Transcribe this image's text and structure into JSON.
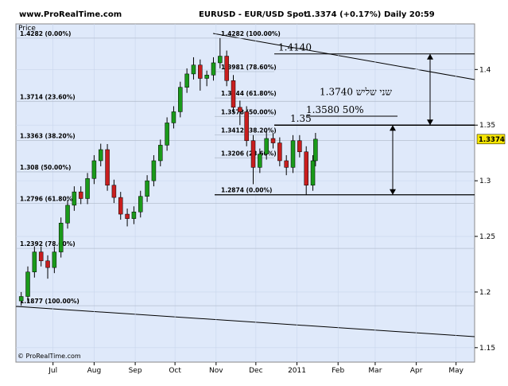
{
  "header": {
    "site": "www.ProRealTime.com",
    "instrument": "EURUSD - EUR/USD Spot",
    "quote": "1.3374 (+0.17%)",
    "period": "Daily 20:59",
    "footer": "© ProRealTime.com"
  },
  "chart_data": {
    "type": "candlestick",
    "y_axis_label": "Price",
    "x": [
      6,
      11,
      16,
      21,
      26,
      31,
      36,
      41,
      46,
      51,
      56,
      61,
      66,
      71,
      76,
      81,
      86,
      91,
      96,
      101,
      106,
      111,
      116,
      121,
      126,
      131,
      136,
      141,
      146,
      151,
      156,
      161,
      166,
      171,
      176,
      181,
      186,
      191,
      196,
      201,
      206,
      211,
      216,
      221,
      226,
      228
    ],
    "open": [
      1.192,
      1.196,
      1.218,
      1.236,
      1.228,
      1.222,
      1.236,
      1.262,
      1.278,
      1.29,
      1.284,
      1.302,
      1.318,
      1.328,
      1.296,
      1.285,
      1.27,
      1.266,
      1.272,
      1.286,
      1.3,
      1.318,
      1.332,
      1.352,
      1.362,
      1.384,
      1.396,
      1.404,
      1.392,
      1.395,
      1.406,
      1.412,
      1.39,
      1.366,
      1.362,
      1.336,
      1.312,
      1.324,
      1.338,
      1.334,
      1.318,
      1.312,
      1.336,
      1.326,
      1.296,
      1.318
    ],
    "high": [
      1.2,
      1.223,
      1.241,
      1.241,
      1.233,
      1.241,
      1.267,
      1.283,
      1.295,
      1.295,
      1.307,
      1.323,
      1.3333,
      1.333,
      1.301,
      1.29,
      1.275,
      1.277,
      1.291,
      1.305,
      1.323,
      1.337,
      1.357,
      1.367,
      1.389,
      1.401,
      1.411,
      1.409,
      1.399,
      1.411,
      1.4282,
      1.417,
      1.395,
      1.372,
      1.367,
      1.341,
      1.329,
      1.345,
      1.343,
      1.339,
      1.323,
      1.341,
      1.341,
      1.331,
      1.323,
      1.343
    ],
    "low": [
      1.1877,
      1.191,
      1.213,
      1.223,
      1.212,
      1.217,
      1.231,
      1.257,
      1.273,
      1.279,
      1.279,
      1.297,
      1.313,
      1.291,
      1.28,
      1.265,
      1.259,
      1.261,
      1.267,
      1.281,
      1.295,
      1.313,
      1.327,
      1.347,
      1.357,
      1.379,
      1.391,
      1.381,
      1.385,
      1.39,
      1.401,
      1.385,
      1.361,
      1.35,
      1.331,
      1.2969,
      1.307,
      1.319,
      1.329,
      1.313,
      1.305,
      1.307,
      1.321,
      1.2874,
      1.291,
      1.313
    ],
    "close": [
      1.196,
      1.218,
      1.236,
      1.228,
      1.222,
      1.236,
      1.262,
      1.278,
      1.29,
      1.284,
      1.302,
      1.318,
      1.328,
      1.296,
      1.285,
      1.27,
      1.266,
      1.272,
      1.286,
      1.3,
      1.318,
      1.332,
      1.352,
      1.362,
      1.384,
      1.396,
      1.404,
      1.392,
      1.395,
      1.406,
      1.412,
      1.39,
      1.366,
      1.362,
      1.336,
      1.312,
      1.324,
      1.338,
      1.334,
      1.318,
      1.312,
      1.336,
      1.326,
      1.296,
      1.318,
      1.3374
    ],
    "up_color": "#1a9a1a",
    "down_color": "#c81e1e",
    "xlim": [
      2,
      348
    ],
    "xticks": [
      {
        "value": 30,
        "label": "Jul"
      },
      {
        "value": 61,
        "label": "Aug"
      },
      {
        "value": 92,
        "label": "Sep"
      },
      {
        "value": 122,
        "label": "Oct"
      },
      {
        "value": 153,
        "label": "Nov"
      },
      {
        "value": 183,
        "label": "Dec"
      },
      {
        "value": 214,
        "label": "2011"
      },
      {
        "value": 245,
        "label": "Feb"
      },
      {
        "value": 273,
        "label": "Mar"
      },
      {
        "value": 304,
        "label": "Apr"
      },
      {
        "value": 334,
        "label": "May"
      }
    ],
    "ylim": [
      1.137,
      1.441
    ],
    "yticks": [
      1.15,
      1.2,
      1.25,
      1.3,
      1.35,
      1.4
    ],
    "last_price": {
      "value": 1.3374,
      "label": "1.3374"
    },
    "fib_left": [
      {
        "value": 1.4282,
        "label": "1.4282 (0.00%)"
      },
      {
        "value": 1.3714,
        "label": "1.3714 (23.60%)"
      },
      {
        "value": 1.3363,
        "label": "1.3363 (38.20%)"
      },
      {
        "value": 1.308,
        "label": "1.308 (50.00%)"
      },
      {
        "value": 1.2796,
        "label": "1.2796 (61.80%)"
      },
      {
        "value": 1.2392,
        "label": "1.2392 (78.60%)"
      },
      {
        "value": 1.1877,
        "label": "1.1877 (100.00%)"
      }
    ],
    "fib_right": [
      {
        "value": 1.4282,
        "label": "1.4282 (100.00%)"
      },
      {
        "value": 1.3981,
        "label": "1.3981 (78.60%)"
      },
      {
        "value": 1.3744,
        "label": "1.3744 (61.80%)"
      },
      {
        "value": 1.3578,
        "label": "1.3578 (50.00%)"
      },
      {
        "value": 1.3412,
        "label": "1.3412 (38.20%)"
      },
      {
        "value": 1.3206,
        "label": "1.3206 (23.60%)"
      },
      {
        "value": 1.2874,
        "label": "1.2874 (0.00%)"
      }
    ],
    "annotations": [
      {
        "value": 1.414,
        "label": "1.4140"
      },
      {
        "value": 1.374,
        "label": "1.3740  שני שליש"
      },
      {
        "value": 1.358,
        "label": "1.3580  50%"
      },
      {
        "value": 1.35,
        "label": "1.35"
      }
    ]
  }
}
